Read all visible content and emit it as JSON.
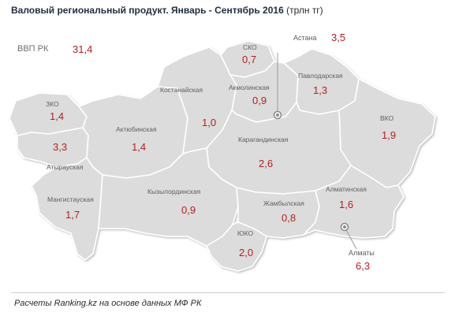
{
  "title": {
    "main": "Валовый региональный продукт. Январь - Сентябрь 2016",
    "unit": "(трлн тг)"
  },
  "total": {
    "label": "ВВП РК",
    "value": "31,4"
  },
  "colors": {
    "region_fill": "#dcdcdc",
    "border": "#ffffff",
    "value_text": "#b21f24",
    "label_text": "#5f5f5f",
    "city_marker": "#8a8a8a"
  },
  "regions": [
    {
      "id": "zko",
      "name": "ЗКО",
      "value": "1,4"
    },
    {
      "id": "atyrau",
      "name": "Атырауская",
      "value": "3,3"
    },
    {
      "id": "mangystau",
      "name": "Мангистауская",
      "value": "1,7"
    },
    {
      "id": "aktobe",
      "name": "Актюбинская",
      "value": "1,4"
    },
    {
      "id": "kostanay",
      "name": "Костанайская",
      "value": "1,0"
    },
    {
      "id": "sko",
      "name": "СКО",
      "value": "0,7"
    },
    {
      "id": "akmola",
      "name": "Акмолинская",
      "value": "0,9"
    },
    {
      "id": "pavlodar",
      "name": "Павлодарская",
      "value": "1,3"
    },
    {
      "id": "vko",
      "name": "ВКО",
      "value": "1,9"
    },
    {
      "id": "karaganda",
      "name": "Карагандинская",
      "value": "2,6"
    },
    {
      "id": "kyzylorda",
      "name": "Кызылординская",
      "value": "0,9"
    },
    {
      "id": "zhambyl",
      "name": "Жамбылская",
      "value": "0,8"
    },
    {
      "id": "uko",
      "name": "ЮКО",
      "value": "2,0"
    },
    {
      "id": "almaty_obl",
      "name": "Алматинская",
      "value": "1,6"
    }
  ],
  "cities": [
    {
      "id": "astana",
      "name": "Астана",
      "value": "3,5",
      "marker": "city-marker"
    },
    {
      "id": "almaty",
      "name": "Алматы",
      "value": "6,3",
      "marker": "city-marker"
    }
  ],
  "footer": "Расчеты Ranking.kz на основе данных МФ РК"
}
